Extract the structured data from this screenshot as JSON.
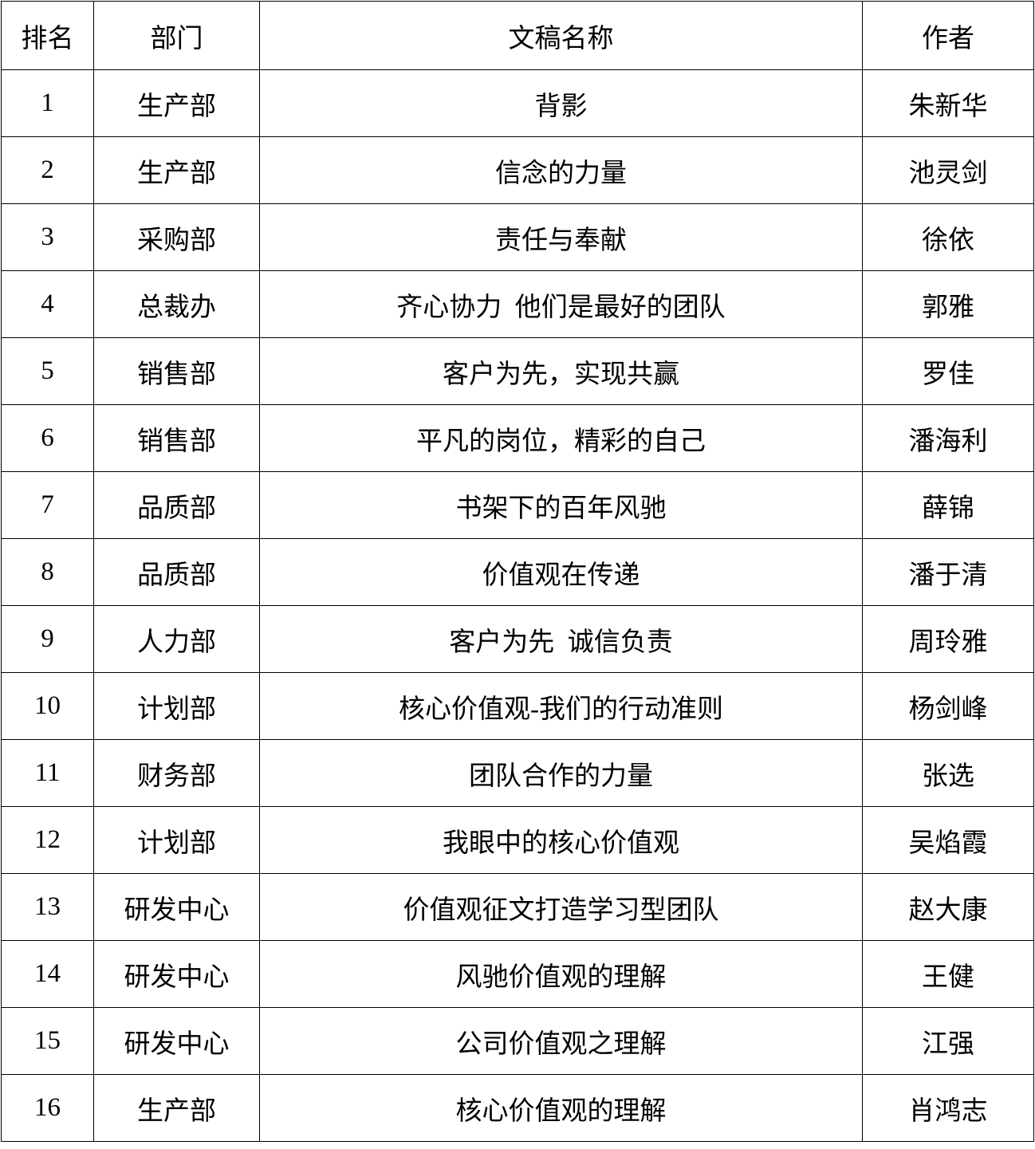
{
  "headers": [
    "排名",
    "部门",
    "文稿名称",
    "作者"
  ],
  "rows": [
    {
      "rank": "1",
      "dept": "生产部",
      "title": "背影",
      "author": "朱新华"
    },
    {
      "rank": "2",
      "dept": "生产部",
      "title": "信念的力量",
      "author": "池灵剑"
    },
    {
      "rank": "3",
      "dept": "采购部",
      "title": "责任与奉献",
      "author": "徐依"
    },
    {
      "rank": "4",
      "dept": "总裁办",
      "title": "齐心协力  他们是最好的团队",
      "author": "郭雅"
    },
    {
      "rank": "5",
      "dept": "销售部",
      "title": "客户为先，实现共赢",
      "author": "罗佳"
    },
    {
      "rank": "6",
      "dept": "销售部",
      "title": "平凡的岗位，精彩的自己",
      "author": "潘海利"
    },
    {
      "rank": "7",
      "dept": "品质部",
      "title": "书架下的百年风驰",
      "author": "薛锦"
    },
    {
      "rank": "8",
      "dept": "品质部",
      "title": "价值观在传递",
      "author": "潘于清"
    },
    {
      "rank": "9",
      "dept": "人力部",
      "title": "客户为先  诚信负责",
      "author": "周玲雅"
    },
    {
      "rank": "10",
      "dept": "计划部",
      "title": "核心价值观-我们的行动准则",
      "author": "杨剑峰"
    },
    {
      "rank": "11",
      "dept": "财务部",
      "title": "团队合作的力量",
      "author": "张选"
    },
    {
      "rank": "12",
      "dept": "计划部",
      "title": "我眼中的核心价值观",
      "author": "吴焰霞"
    },
    {
      "rank": "13",
      "dept": "研发中心",
      "title": "价值观征文打造学习型团队",
      "author": "赵大康"
    },
    {
      "rank": "14",
      "dept": "研发中心",
      "title": "风驰价值观的理解",
      "author": "王健"
    },
    {
      "rank": "15",
      "dept": "研发中心",
      "title": "公司价值观之理解",
      "author": "江强"
    },
    {
      "rank": "16",
      "dept": "生产部",
      "title": "核心价值观的理解",
      "author": "肖鸿志"
    }
  ]
}
